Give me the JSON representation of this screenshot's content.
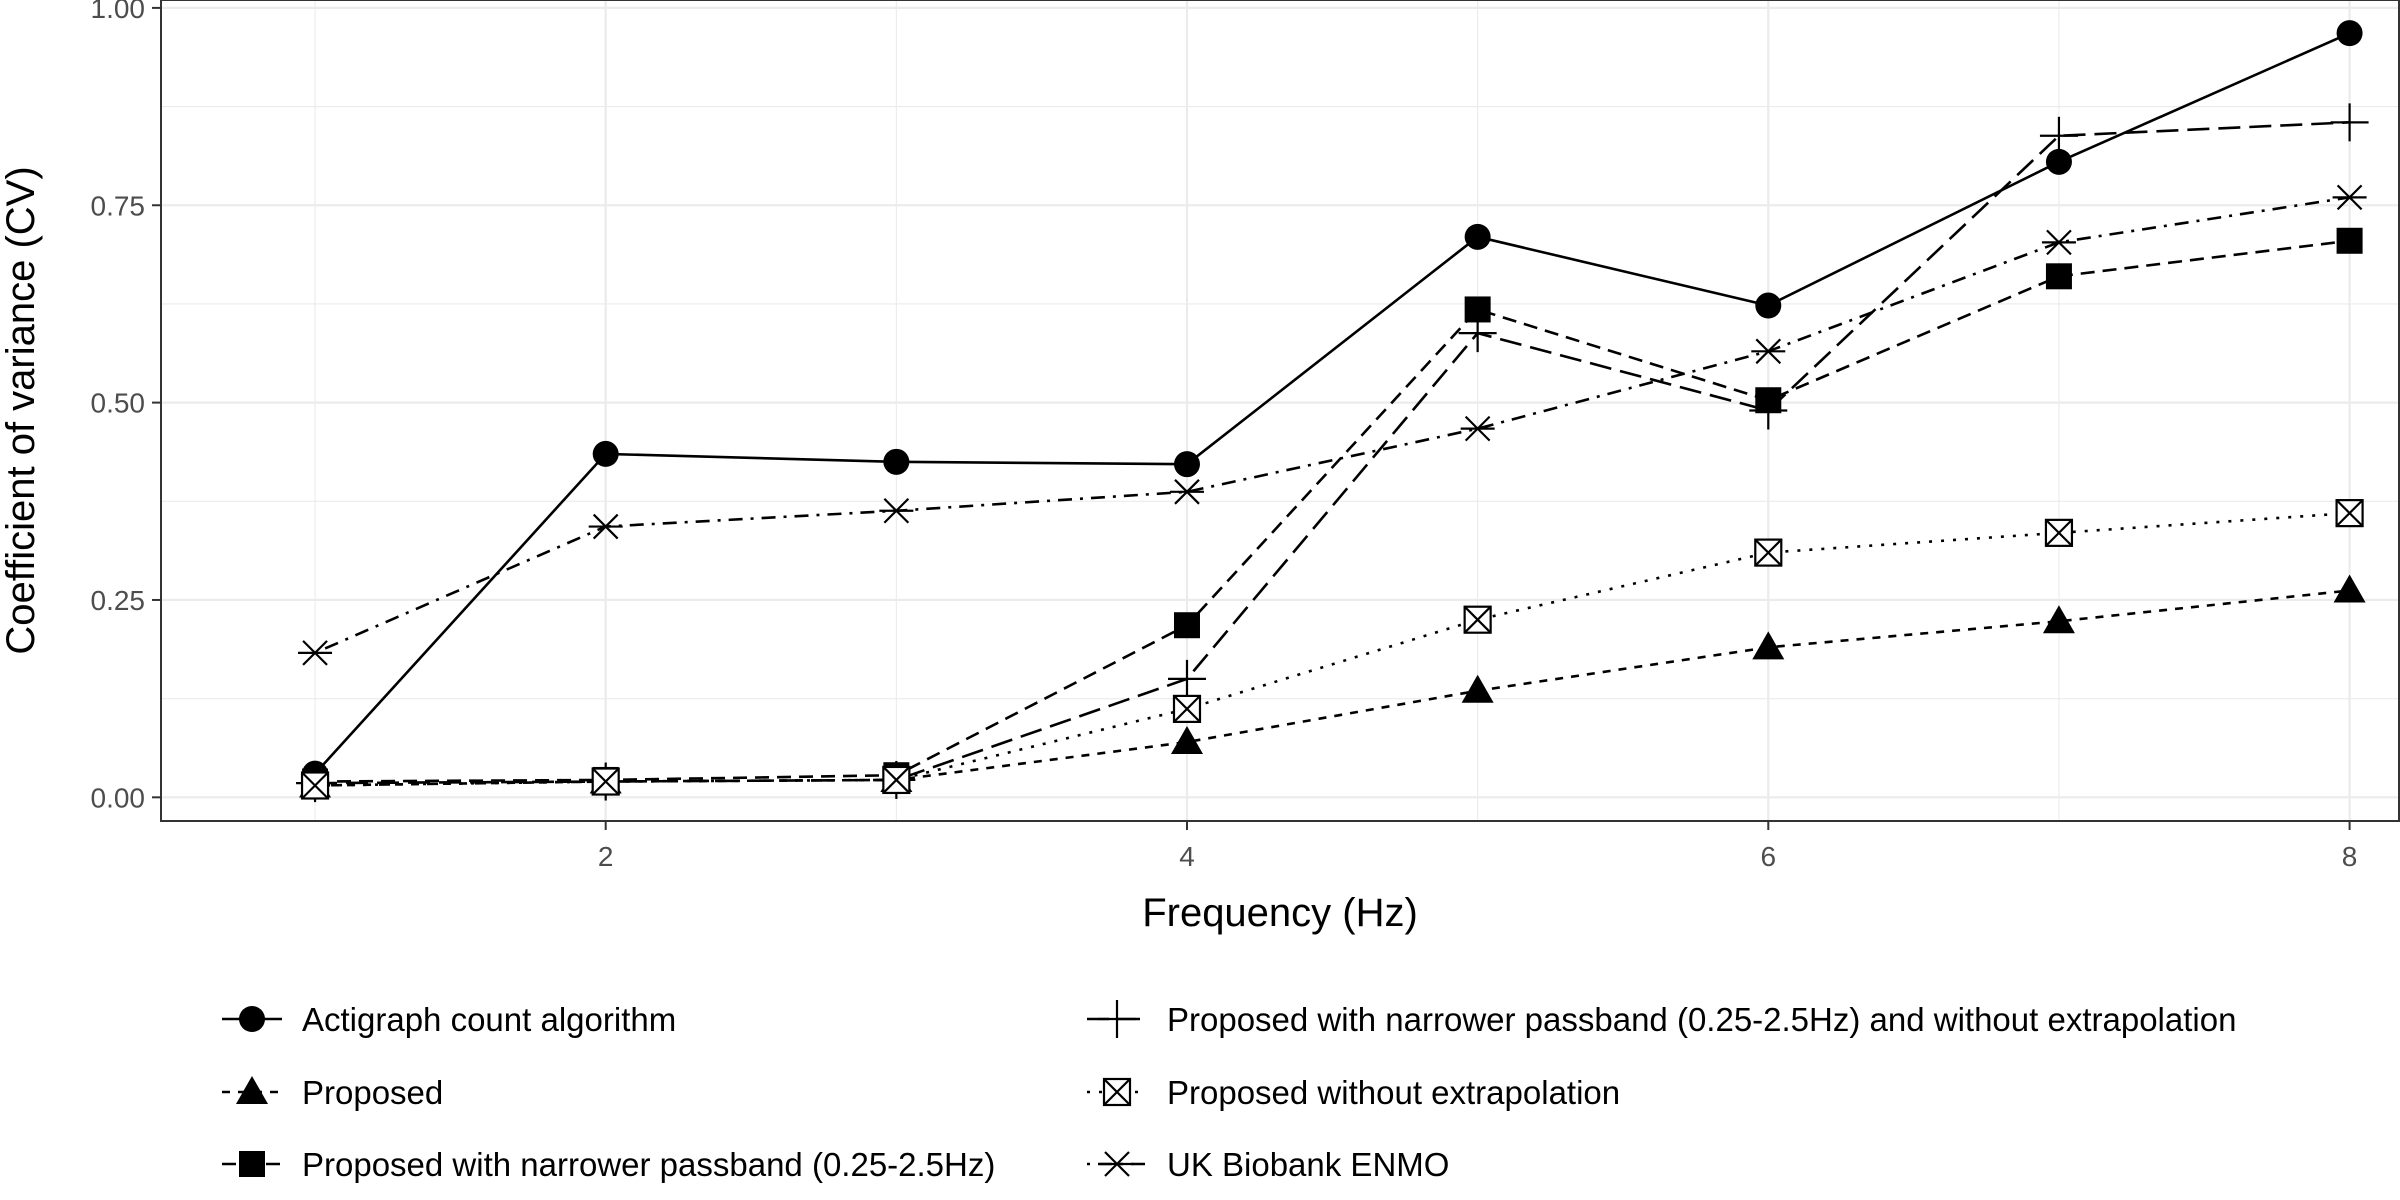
{
  "chart_data": {
    "type": "line",
    "xlabel": "Frequency (Hz)",
    "ylabel": "Coefficient of variance (CV)",
    "xlim": [
      0.47,
      8.17
    ],
    "ylim": [
      -0.03,
      1.01
    ],
    "x_ticks": [
      2,
      4,
      6,
      8
    ],
    "x_tick_labels": [
      "2",
      "4",
      "6",
      "8"
    ],
    "y_ticks": [
      0,
      0.25,
      0.5,
      0.75,
      1.0
    ],
    "y_tick_labels": [
      "0.00",
      "0.25",
      "0.50",
      "0.75",
      "1.00"
    ],
    "grid": true,
    "legend_position": "bottom",
    "x": [
      1,
      2,
      3,
      4,
      5,
      6,
      7,
      8
    ],
    "series": [
      {
        "name": "Actigraph count algorithm",
        "marker": "circle",
        "dash": "solid",
        "values": [
          0.03,
          0.435,
          0.425,
          0.422,
          0.71,
          0.623,
          0.805,
          0.968
        ]
      },
      {
        "name": "Proposed",
        "marker": "triangle",
        "dash": "dashed-short",
        "values": [
          0.015,
          0.02,
          0.022,
          0.07,
          0.135,
          0.19,
          0.223,
          0.262
        ]
      },
      {
        "name": "Proposed with narrower passband (0.25-2.5Hz)",
        "marker": "square",
        "dash": "dashed",
        "values": [
          0.02,
          0.022,
          0.028,
          0.218,
          0.618,
          0.503,
          0.66,
          0.705
        ]
      },
      {
        "name": "Proposed with narrower passband (0.25-2.5Hz) and without extrapolation",
        "marker": "plus",
        "dash": "longdash",
        "values": [
          0.018,
          0.02,
          0.022,
          0.15,
          0.588,
          0.49,
          0.838,
          0.855
        ]
      },
      {
        "name": "Proposed without extrapolation",
        "marker": "boxcross",
        "dash": "dotted",
        "values": [
          0.015,
          0.02,
          0.022,
          0.112,
          0.225,
          0.31,
          0.335,
          0.36
        ]
      },
      {
        "name": "UK Biobank ENMO",
        "marker": "asterisk",
        "dash": "dotdash",
        "values": [
          0.183,
          0.343,
          0.363,
          0.387,
          0.467,
          0.565,
          0.703,
          0.76
        ]
      }
    ]
  }
}
